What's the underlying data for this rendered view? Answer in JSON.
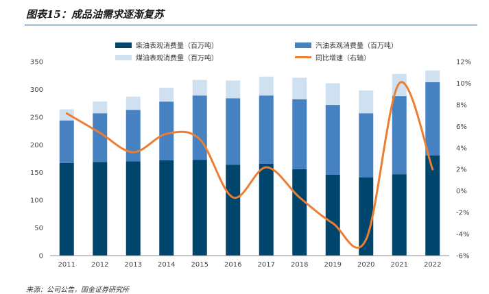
{
  "figure_title": "图表15：成品油需求逐渐复苏",
  "source_note": "来源：公司公告，国金证券研究所",
  "colors": {
    "diesel": "#00456b",
    "gasoline": "#4682c2",
    "kerosene": "#cfe0f1",
    "growth": "#ed7d31",
    "title_rule": "#1f3864"
  },
  "chart_data": {
    "type": "bar",
    "stacked": true,
    "categories": [
      "2011",
      "2012",
      "2013",
      "2014",
      "2015",
      "2016",
      "2017",
      "2018",
      "2019",
      "2020",
      "2021",
      "2022"
    ],
    "series": [
      {
        "name": "柴油表观消费量（百万吨）",
        "axis": "left",
        "values": [
          167,
          169,
          170,
          172,
          173,
          164,
          166,
          156,
          146,
          141,
          147,
          181
        ]
      },
      {
        "name": "汽油表观消费量（百万吨）",
        "axis": "left",
        "values": [
          77,
          88,
          93,
          106,
          116,
          120,
          123,
          126,
          126,
          116,
          141,
          132
        ]
      },
      {
        "name": "煤油表观消费量（百万吨）",
        "axis": "left",
        "values": [
          20,
          21,
          24,
          25,
          28,
          32,
          34,
          39,
          39,
          41,
          40,
          21
        ]
      },
      {
        "name": "同比增速（右轴）",
        "axis": "right",
        "type": "line",
        "values": [
          7.2,
          5.4,
          3.6,
          5.3,
          4.8,
          -0.6,
          2.2,
          -0.6,
          -3.0,
          -4.5,
          10.0,
          2.0
        ]
      }
    ],
    "ylim_left": [
      0,
      350
    ],
    "yticks_left": [
      0,
      50,
      100,
      150,
      200,
      250,
      300,
      350
    ],
    "ylim_right": [
      -6,
      12
    ],
    "yticks_right": [
      "-6%",
      "-4%",
      "-2%",
      "0%",
      "2%",
      "4%",
      "6%",
      "8%",
      "10%",
      "12%"
    ],
    "grid": false,
    "legend_position": "top"
  }
}
